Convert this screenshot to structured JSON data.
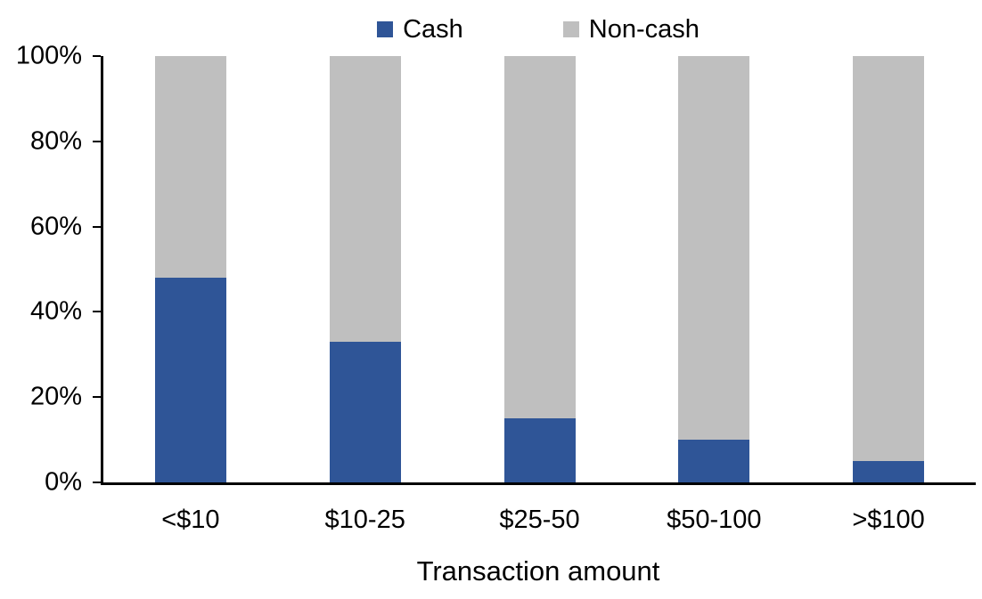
{
  "chart_data": {
    "type": "bar",
    "stacked": true,
    "percent_stacked": true,
    "title": "",
    "xlabel": "Transaction amount",
    "ylabel": "",
    "categories": [
      "<$10",
      "$10-25",
      "$25-50",
      "$50-100",
      ">$100"
    ],
    "series": [
      {
        "name": "Cash",
        "color": "#2F5597",
        "values": [
          48,
          33,
          15,
          10,
          5
        ]
      },
      {
        "name": "Non-cash",
        "color": "#BFBFBF",
        "values": [
          52,
          67,
          85,
          90,
          95
        ]
      }
    ],
    "ylim": [
      0,
      100
    ],
    "yticks": [
      0,
      20,
      40,
      60,
      80,
      100
    ],
    "ytick_suffix": "%",
    "legend_position": "top-center",
    "grid": false,
    "axis_color": "#000000",
    "text_color": "#000000",
    "background_color": "#FFFFFF"
  }
}
